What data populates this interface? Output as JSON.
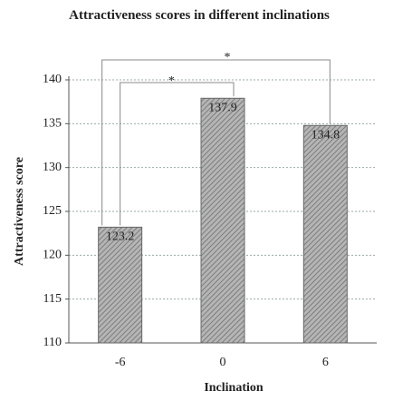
{
  "chart_data": {
    "type": "bar",
    "title": "Attractiveness scores in different inclinations",
    "x_label": "Inclination",
    "y_label": "Attractiveness score",
    "categories": [
      "-6",
      "0",
      "6"
    ],
    "values": [
      123.2,
      137.9,
      134.8
    ],
    "color": "#8a8a8a",
    "ylim": [
      110,
      140
    ],
    "yticks": [
      110,
      115,
      120,
      125,
      130,
      135,
      140
    ],
    "grid": true,
    "annotations": [
      "*",
      "*"
    ]
  }
}
